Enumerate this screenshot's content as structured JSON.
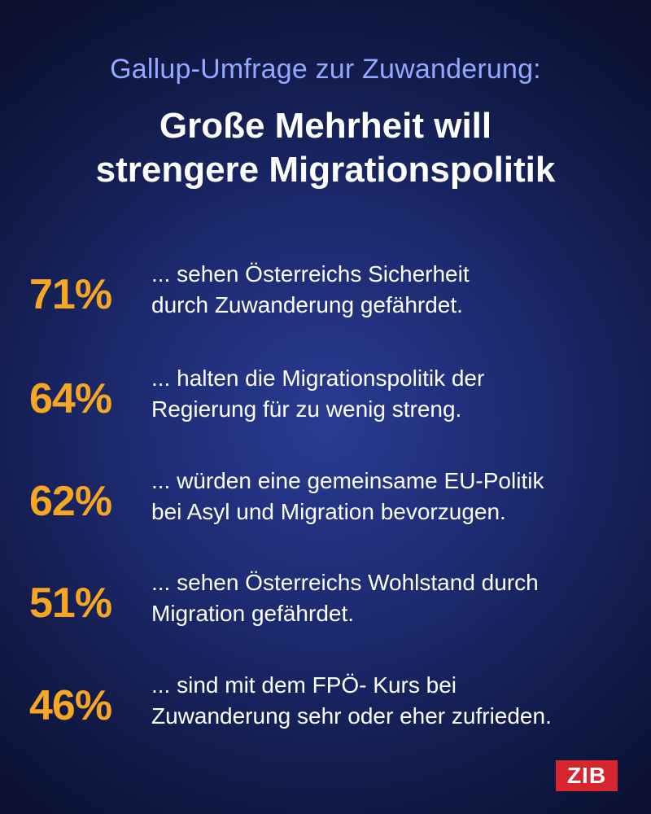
{
  "kicker": "Gallup-Umfrage zur Zuwanderung:",
  "headline": {
    "line1": "Große Mehrheit will",
    "line2": "strengere Migrationspolitik"
  },
  "stats": [
    {
      "percent": "71%",
      "line1": "... sehen Österreichs Sicherheit",
      "line2": "durch Zuwanderung gefährdet."
    },
    {
      "percent": "64%",
      "line1": "... halten die Migrationspolitik der",
      "line2": "Regierung für zu wenig streng."
    },
    {
      "percent": "62%",
      "line1": "... würden eine gemeinsame EU-Politik",
      "line2": "bei Asyl und Migration bevorzugen."
    },
    {
      "percent": "51%",
      "line1": "... sehen Österreichs Wohlstand durch",
      "line2": "Migration gefährdet."
    },
    {
      "percent": "46%",
      "line1": "... sind mit dem FPÖ- Kurs bei",
      "line2": "Zuwanderung sehr oder eher zufrieden."
    }
  ],
  "logo": "ZIB",
  "colors": {
    "kicker": "#93a8ff",
    "percent": "#f5a623",
    "text": "#ffffff",
    "logo_bg": "#d7262d",
    "background": "#1d2b72"
  }
}
